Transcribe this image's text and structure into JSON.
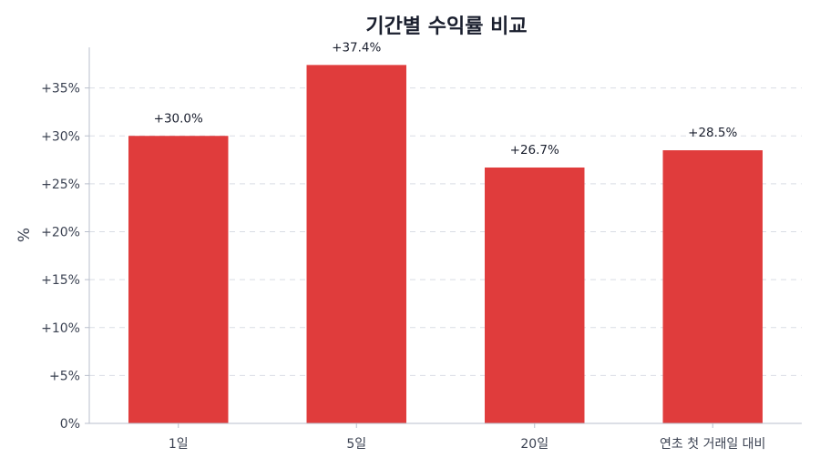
{
  "chart_data": {
    "type": "bar",
    "title": "기간별 수익률 비교",
    "xlabel": "",
    "ylabel": "%",
    "categories": [
      "1일",
      "5일",
      "20일",
      "연초 첫 거래일 대비"
    ],
    "values": [
      30.0,
      37.4,
      26.7,
      28.5
    ],
    "data_labels": [
      "+30.0%",
      "+37.4%",
      "+26.7%",
      "+28.5%"
    ],
    "ylim": [
      0,
      40
    ],
    "yticks": [
      0,
      5,
      10,
      15,
      20,
      25,
      30,
      35
    ],
    "ytick_labels": [
      "0%",
      "+5%",
      "+10%",
      "+15%",
      "+20%",
      "+25%",
      "+30%",
      "+35%"
    ],
    "grid": true,
    "bar_color": "#e03c3c",
    "legend": "none"
  }
}
